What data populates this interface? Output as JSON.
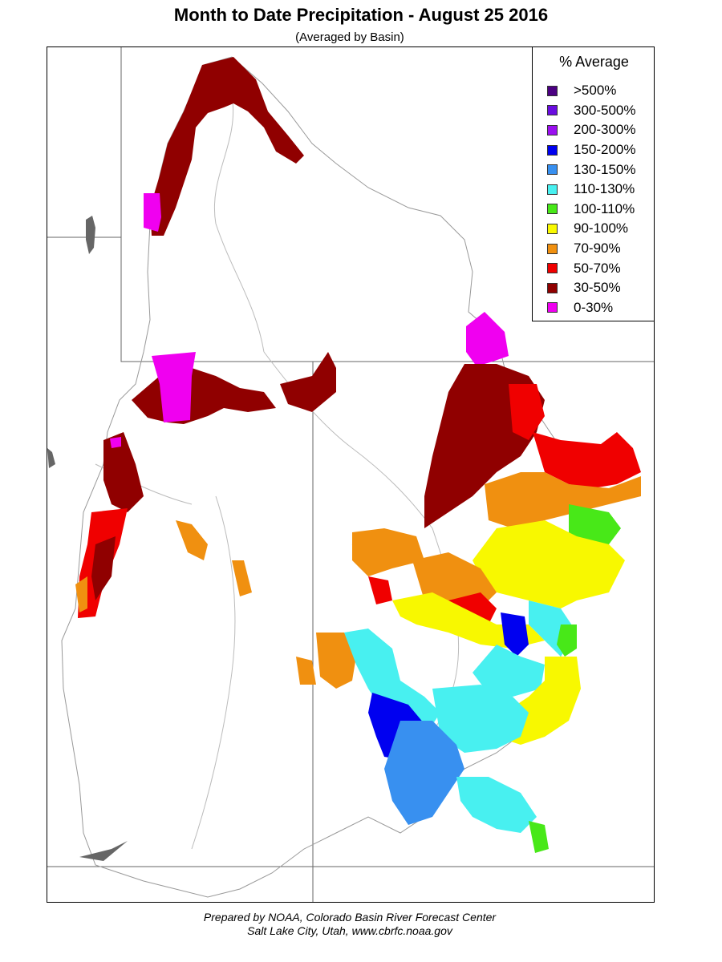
{
  "title": "Month to Date Precipitation - August 25 2016",
  "subtitle": "(Averaged by Basin)",
  "legend": {
    "title": "% Average",
    "items": [
      {
        "label": ">500%",
        "color": "#4b0082"
      },
      {
        "label": "300-500%",
        "color": "#6a0de0"
      },
      {
        "label": "200-300%",
        "color": "#9a10f0"
      },
      {
        "label": "150-200%",
        "color": "#0000f0"
      },
      {
        "label": "130-150%",
        "color": "#3890f0"
      },
      {
        "label": "110-130%",
        "color": "#48f0f0"
      },
      {
        "label": "100-110%",
        "color": "#48e818"
      },
      {
        "label": "90-100%",
        "color": "#f8f800"
      },
      {
        "label": "70-90%",
        "color": "#f09010"
      },
      {
        "label": "50-70%",
        "color": "#f00000"
      },
      {
        "label": "30-50%",
        "color": "#900000"
      },
      {
        "label": "0-30%",
        "color": "#f000f0"
      }
    ]
  },
  "footer": {
    "line1": "Prepared by NOAA, Colorado Basin River Forecast Center",
    "line2": "Salt Lake City, Utah, www.cbrfc.noaa.gov"
  }
}
